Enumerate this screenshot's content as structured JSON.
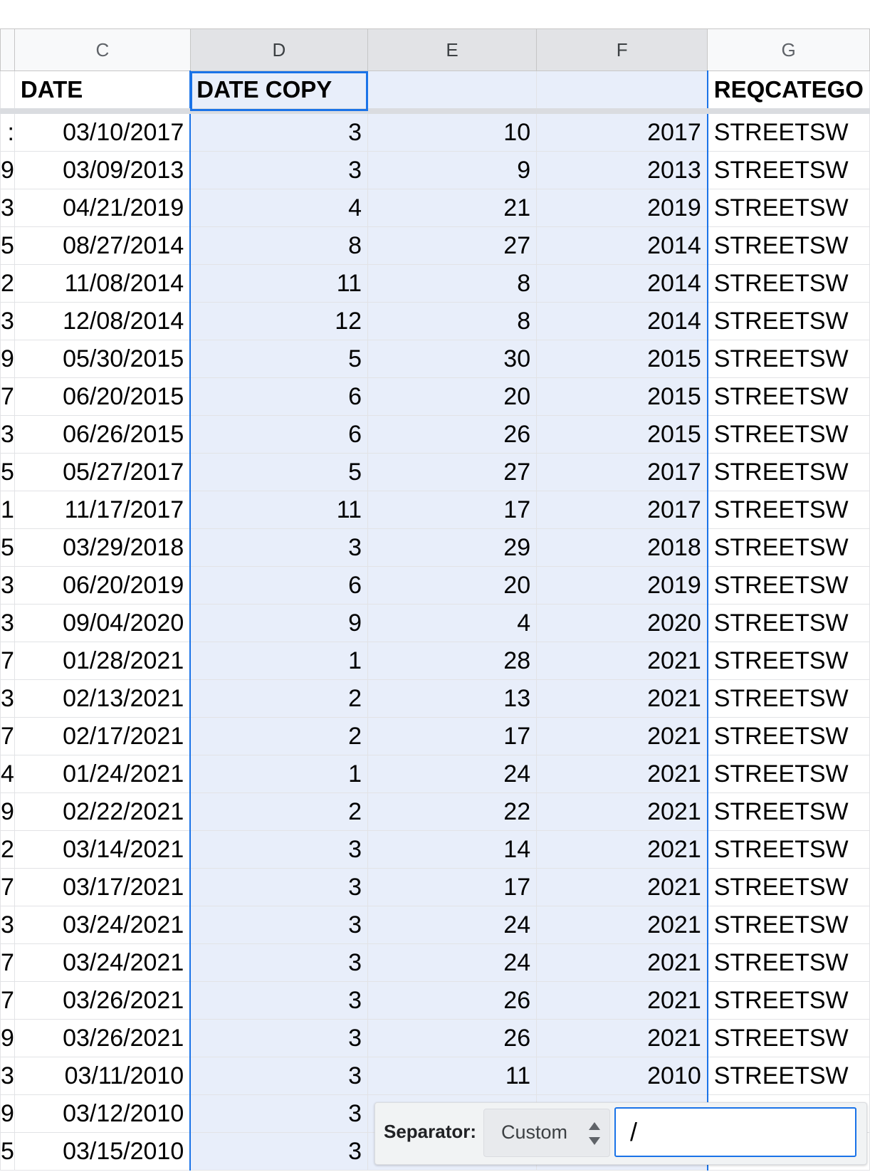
{
  "columns": [
    "C",
    "D",
    "E",
    "F",
    "G"
  ],
  "header_row": {
    "c": "DATE",
    "d": "DATE COPY",
    "e": "",
    "f": "",
    "g": "REQCATEGO"
  },
  "left_edge_glyphs": [
    ":",
    "9",
    "3",
    "5",
    "2",
    "3",
    "9",
    "7",
    "3",
    "5",
    "1",
    "5",
    "3",
    "3",
    "7",
    "3",
    "7",
    "4",
    "9",
    "2",
    "7",
    "3",
    "7",
    "7",
    "9",
    "3",
    "9",
    "5"
  ],
  "rows": [
    {
      "date": "03/10/2017",
      "d": "3",
      "e": "10",
      "f": "2017",
      "g": "STREETSW"
    },
    {
      "date": "03/09/2013",
      "d": "3",
      "e": "9",
      "f": "2013",
      "g": "STREETSW"
    },
    {
      "date": "04/21/2019",
      "d": "4",
      "e": "21",
      "f": "2019",
      "g": "STREETSW"
    },
    {
      "date": "08/27/2014",
      "d": "8",
      "e": "27",
      "f": "2014",
      "g": "STREETSW"
    },
    {
      "date": "11/08/2014",
      "d": "11",
      "e": "8",
      "f": "2014",
      "g": "STREETSW"
    },
    {
      "date": "12/08/2014",
      "d": "12",
      "e": "8",
      "f": "2014",
      "g": "STREETSW"
    },
    {
      "date": "05/30/2015",
      "d": "5",
      "e": "30",
      "f": "2015",
      "g": "STREETSW"
    },
    {
      "date": "06/20/2015",
      "d": "6",
      "e": "20",
      "f": "2015",
      "g": "STREETSW"
    },
    {
      "date": "06/26/2015",
      "d": "6",
      "e": "26",
      "f": "2015",
      "g": "STREETSW"
    },
    {
      "date": "05/27/2017",
      "d": "5",
      "e": "27",
      "f": "2017",
      "g": "STREETSW"
    },
    {
      "date": "11/17/2017",
      "d": "11",
      "e": "17",
      "f": "2017",
      "g": "STREETSW"
    },
    {
      "date": "03/29/2018",
      "d": "3",
      "e": "29",
      "f": "2018",
      "g": "STREETSW"
    },
    {
      "date": "06/20/2019",
      "d": "6",
      "e": "20",
      "f": "2019",
      "g": "STREETSW"
    },
    {
      "date": "09/04/2020",
      "d": "9",
      "e": "4",
      "f": "2020",
      "g": "STREETSW"
    },
    {
      "date": "01/28/2021",
      "d": "1",
      "e": "28",
      "f": "2021",
      "g": "STREETSW"
    },
    {
      "date": "02/13/2021",
      "d": "2",
      "e": "13",
      "f": "2021",
      "g": "STREETSW"
    },
    {
      "date": "02/17/2021",
      "d": "2",
      "e": "17",
      "f": "2021",
      "g": "STREETSW"
    },
    {
      "date": "01/24/2021",
      "d": "1",
      "e": "24",
      "f": "2021",
      "g": "STREETSW"
    },
    {
      "date": "02/22/2021",
      "d": "2",
      "e": "22",
      "f": "2021",
      "g": "STREETSW"
    },
    {
      "date": "03/14/2021",
      "d": "3",
      "e": "14",
      "f": "2021",
      "g": "STREETSW"
    },
    {
      "date": "03/17/2021",
      "d": "3",
      "e": "17",
      "f": "2021",
      "g": "STREETSW"
    },
    {
      "date": "03/24/2021",
      "d": "3",
      "e": "24",
      "f": "2021",
      "g": "STREETSW"
    },
    {
      "date": "03/24/2021",
      "d": "3",
      "e": "24",
      "f": "2021",
      "g": "STREETSW"
    },
    {
      "date": "03/26/2021",
      "d": "3",
      "e": "26",
      "f": "2021",
      "g": "STREETSW"
    },
    {
      "date": "03/26/2021",
      "d": "3",
      "e": "26",
      "f": "2021",
      "g": "STREETSW"
    },
    {
      "date": "03/11/2010",
      "d": "3",
      "e": "11",
      "f": "2010",
      "g": "STREETSW"
    },
    {
      "date": "03/12/2010",
      "d": "3",
      "e": "",
      "f": "",
      "g": ""
    },
    {
      "date": "03/15/2010",
      "d": "3",
      "e": "",
      "f": "",
      "g": ""
    }
  ],
  "split_panel": {
    "label": "Separator:",
    "select_value": "Custom",
    "input_value": "/"
  },
  "colors": {
    "selection_fill": "#e8eefa",
    "selection_border": "#1a73e8",
    "header_fill": "#f8f9fa"
  }
}
